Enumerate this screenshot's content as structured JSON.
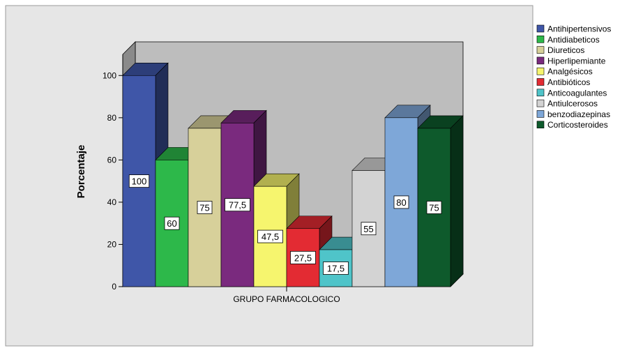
{
  "chart_data": {
    "type": "bar",
    "style": "3d",
    "ylabel": "Porcentaje",
    "xlabel": "GRUPO FARMACOLOGICO",
    "ylim": [
      0,
      110
    ],
    "yticks": [
      "0",
      "20",
      "40",
      "60",
      "80",
      "100"
    ],
    "grid": false,
    "legend_position": "right",
    "colors": {
      "plot_area": "#e6e6e6",
      "back_wall": "#bdbdbd",
      "side_wall": "#8a8a8a",
      "floor": "#a0a0a0"
    },
    "series": [
      {
        "name": "Antihipertensivos",
        "value": 100,
        "label": "100",
        "color": "#3f56a8"
      },
      {
        "name": "Antidiabeticos",
        "value": 60,
        "label": "60",
        "color": "#2db84a"
      },
      {
        "name": "Diureticos",
        "value": 75,
        "label": "75",
        "color": "#d7d09a"
      },
      {
        "name": "Hiperlipemiante",
        "value": 77.5,
        "label": "77,5",
        "color": "#7a2a7e"
      },
      {
        "name": "Analgésicos",
        "value": 47.5,
        "label": "47,5",
        "color": "#f6f56e"
      },
      {
        "name": "Antibióticos",
        "value": 27.5,
        "label": "27,5",
        "color": "#e32b33"
      },
      {
        "name": "Anticoagulantes",
        "value": 17.5,
        "label": "17,5",
        "color": "#4fc4c9"
      },
      {
        "name": "Antiulcerosos",
        "value": 55,
        "label": "55",
        "color": "#d3d3d3"
      },
      {
        "name": "benzodiazepinas",
        "value": 80,
        "label": "80",
        "color": "#7ea7d8"
      },
      {
        "name": "Corticosteroides",
        "value": 75,
        "label": "75",
        "color": "#0e5a2c"
      }
    ]
  }
}
